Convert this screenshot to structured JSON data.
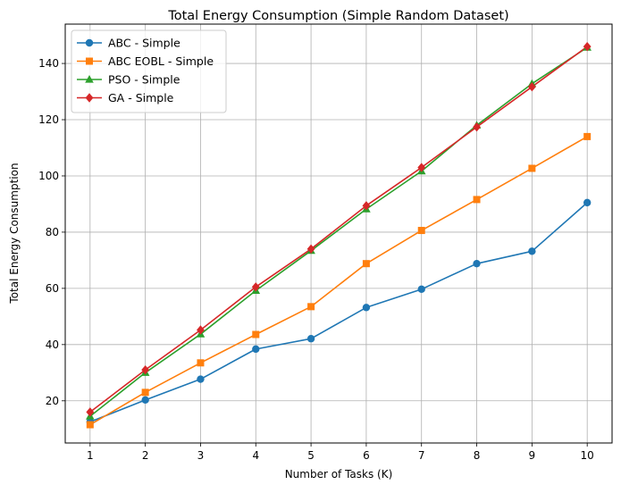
{
  "chart_data": {
    "type": "line",
    "title": "Total Energy Consumption (Simple Random Dataset)",
    "xlabel": "Number of Tasks (K)",
    "ylabel": "Total Energy Consumption",
    "x": [
      1,
      2,
      3,
      4,
      5,
      6,
      7,
      8,
      9,
      10
    ],
    "xticks": [
      "1",
      "2",
      "3",
      "4",
      "5",
      "6",
      "7",
      "8",
      "9",
      "10"
    ],
    "yticks": [
      20,
      40,
      60,
      80,
      100,
      120,
      140
    ],
    "xlim": [
      0.55,
      10.45
    ],
    "ylim": [
      5,
      154
    ],
    "grid": true,
    "legend_position": "top-left",
    "series": [
      {
        "name": "ABC - Simple",
        "color": "#1f77b4",
        "marker": "circle",
        "values": [
          12.5,
          20.3,
          27.7,
          38.4,
          42.1,
          53.2,
          59.7,
          68.8,
          73.2,
          90.5
        ]
      },
      {
        "name": "ABC EOBL - Simple",
        "color": "#ff7f0e",
        "marker": "square",
        "values": [
          11.5,
          23.0,
          33.5,
          43.6,
          53.5,
          68.8,
          80.6,
          91.6,
          102.7,
          114.0
        ]
      },
      {
        "name": "PSO - Simple",
        "color": "#2ca02c",
        "marker": "triangle",
        "values": [
          14.5,
          30.0,
          43.7,
          59.2,
          73.4,
          88.2,
          101.7,
          118.0,
          132.8,
          145.7
        ]
      },
      {
        "name": "GA - Simple",
        "color": "#d62728",
        "marker": "diamond",
        "values": [
          16.0,
          31.0,
          45.2,
          60.5,
          74.0,
          89.4,
          103.0,
          117.4,
          131.7,
          146.0
        ]
      }
    ]
  }
}
